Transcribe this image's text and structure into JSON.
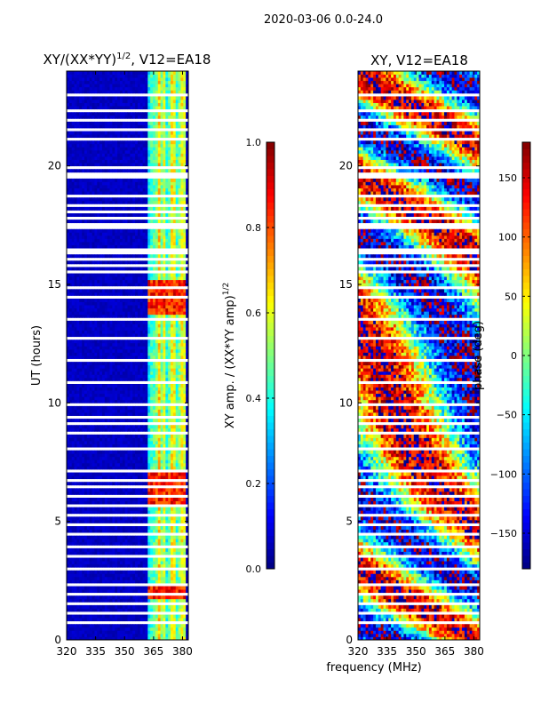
{
  "figure": {
    "suptitle": "2020-03-06 0.0-24.0",
    "xlabel": "frequency (MHz)"
  },
  "chart_data": [
    {
      "type": "heatmap",
      "title_main": "XY/(XX*YY)",
      "title_exp": "1/2",
      "title_tail": ", V12=EA18",
      "ylabel": "UT (hours)",
      "xlim": [
        320,
        383
      ],
      "ylim": [
        0,
        24
      ],
      "xticks": [
        320,
        335,
        350,
        365,
        380
      ],
      "yticks": [
        0,
        5,
        10,
        15,
        20
      ],
      "colorbar": {
        "label_main": "XY amp. / (XX*YY amp)",
        "label_exp": "1/2",
        "range": [
          0.0,
          1.0
        ],
        "ticks": [
          "0.0",
          "0.2",
          "0.4",
          "0.6",
          "0.8",
          "1.0"
        ],
        "tick_values": [
          0.0,
          0.2,
          0.4,
          0.6,
          0.8,
          1.0
        ],
        "colormap": "jet"
      },
      "typical_values": {
        "background_below_362MHz": 0.05,
        "band_362_382MHz": 0.45,
        "band_peak_hours": [
          2,
          6,
          6.5,
          7,
          14,
          14.5,
          15
        ]
      }
    },
    {
      "type": "heatmap",
      "title": "XY, V12=EA18",
      "xlim": [
        320,
        383
      ],
      "ylim": [
        0,
        24
      ],
      "xticks": [
        320,
        335,
        350,
        365,
        380
      ],
      "yticks": [
        0,
        5,
        10,
        15,
        20
      ],
      "colorbar": {
        "label": "phase (deg)",
        "range": [
          -180,
          180
        ],
        "ticks": [
          "150",
          "100",
          "50",
          "0",
          "−50",
          "−100",
          "−150"
        ],
        "tick_values": [
          150,
          100,
          50,
          0,
          -50,
          -100,
          -150
        ],
        "colormap": "jet"
      }
    }
  ]
}
